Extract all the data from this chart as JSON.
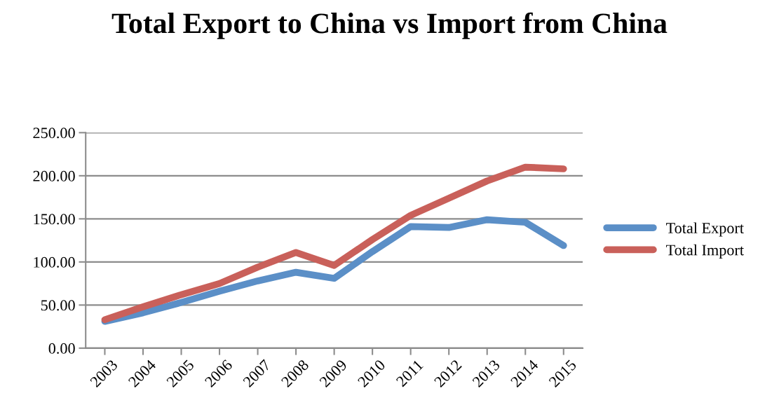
{
  "chart_data": {
    "type": "line",
    "title": "Total Export to China vs Import from China",
    "categories": [
      "2003",
      "2004",
      "2005",
      "2006",
      "2007",
      "2008",
      "2009",
      "2010",
      "2011",
      "2012",
      "2013",
      "2014",
      "2015"
    ],
    "series": [
      {
        "name": "Total Export",
        "color": "#5b8fc7",
        "values": [
          31,
          41,
          53,
          66,
          78,
          88,
          81,
          112,
          141,
          140,
          149,
          146,
          119
        ]
      },
      {
        "name": "Total Import",
        "color": "#c9605a",
        "values": [
          33,
          48,
          62,
          75,
          94,
          111,
          96,
          126,
          154,
          174,
          194,
          210,
          208
        ]
      }
    ],
    "ylim": [
      0,
      250
    ],
    "yticks": [
      {
        "value": 0,
        "label": "0.00"
      },
      {
        "value": 50,
        "label": "50.00"
      },
      {
        "value": 100,
        "label": "100.00"
      },
      {
        "value": 150,
        "label": "150.00"
      },
      {
        "value": 200,
        "label": "200.00"
      },
      {
        "value": 250,
        "label": "250.00"
      }
    ],
    "grid": "y",
    "legend": "right",
    "marker": "none",
    "line_style": "solid"
  }
}
